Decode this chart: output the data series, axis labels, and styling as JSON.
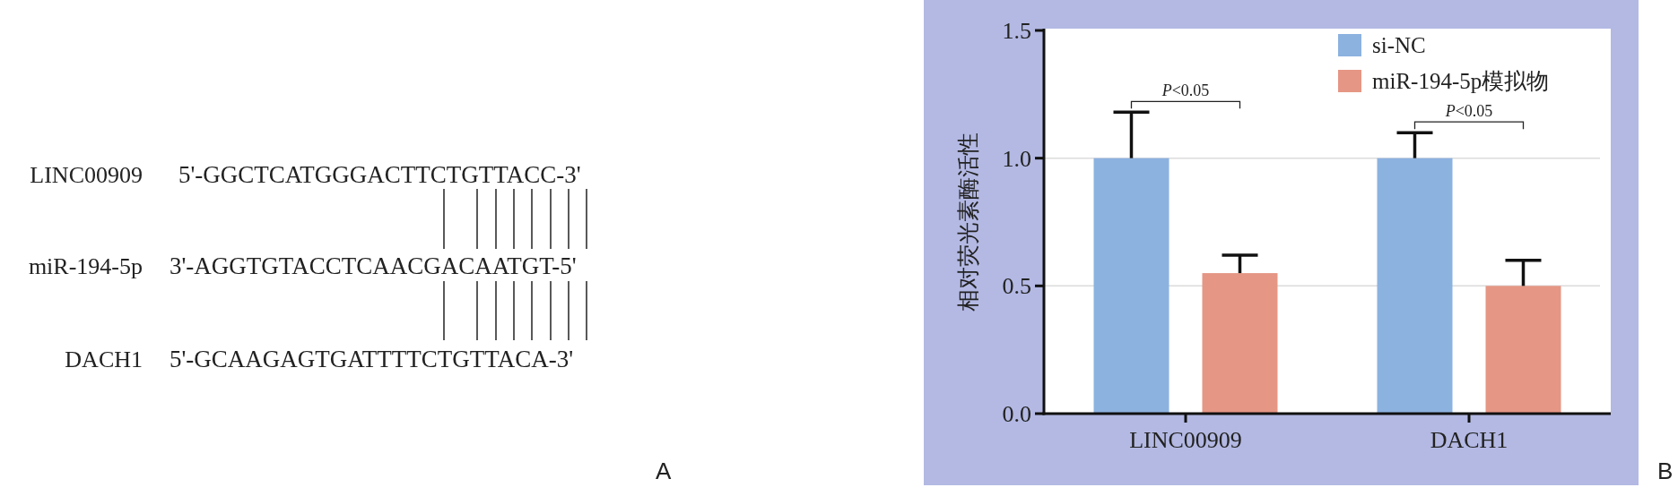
{
  "chart_data": [
    {
      "type": "other",
      "annotations": [
        "LINC00909",
        "5'-GGCTCATGGGACTTCTGTTACC-3'",
        "miR-194-5p",
        "3'-AGGTGTACCTCAACGACAATGT-5'",
        "DACH1",
        "5'-GCAAGAGTGATTTTCTGTTACA-3'",
        "A"
      ]
    },
    {
      "type": "bar",
      "categories": [
        "LINC00909",
        "DACH1"
      ],
      "ylabel": "相对荧光素酶活性",
      "series": [
        {
          "name": "si-NC",
          "color": "#8cb2e0",
          "values": [
            1.0,
            1.0
          ],
          "errors": [
            [
              1.0,
              1.18
            ],
            [
              1.0,
              1.1
            ]
          ]
        },
        {
          "name": "miR-194-5p模拟物",
          "color": "#e59684",
          "values": [
            0.55,
            0.5
          ],
          "errors": [
            [
              0.55,
              0.62
            ],
            [
              0.5,
              0.6
            ]
          ]
        }
      ],
      "ylim": [
        0,
        1.5
      ],
      "yticks": [
        {
          "value": 0,
          "label": "0.0"
        },
        {
          "value": 0.5,
          "label": "0.5"
        },
        {
          "value": 1,
          "label": "1.0"
        },
        {
          "value": 1.5,
          "label": "1.5"
        }
      ],
      "grid": "y",
      "legend": "top right",
      "annotations": [
        "P<0.05",
        "P<0.05",
        "B"
      ]
    }
  ]
}
